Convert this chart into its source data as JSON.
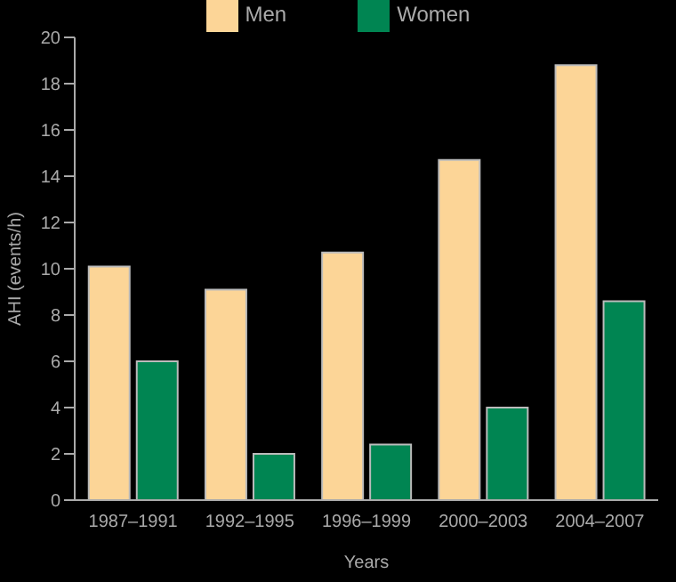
{
  "chart_data": {
    "type": "bar",
    "xlabel": "Years",
    "ylabel": "AHI (events/h)",
    "categories": [
      "1987–1991",
      "1992–1995",
      "1996–1999",
      "2000–2003",
      "2004–2007"
    ],
    "series": [
      {
        "name": "Men",
        "color": "#fcd597",
        "values": [
          10.1,
          9.1,
          10.7,
          14.7,
          18.8
        ]
      },
      {
        "name": "Women",
        "color": "#008552",
        "values": [
          6.0,
          2.0,
          2.4,
          4.0,
          8.6
        ]
      }
    ],
    "ylim": [
      0,
      20
    ],
    "yticks": [
      0,
      2,
      4,
      6,
      8,
      10,
      12,
      14,
      16,
      18,
      20
    ],
    "grid": false,
    "legend": "top"
  }
}
